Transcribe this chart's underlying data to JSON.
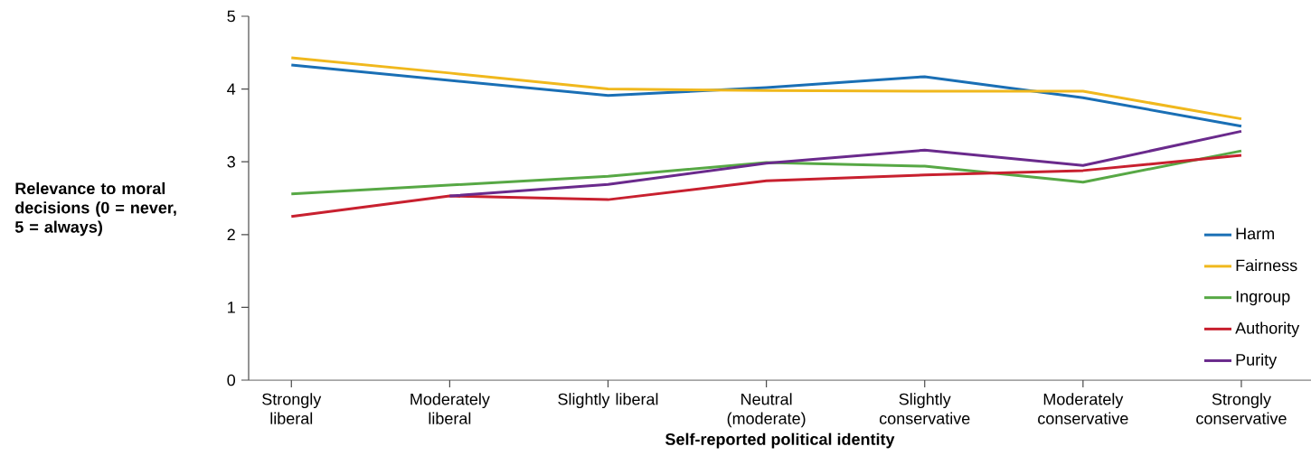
{
  "chart_data": {
    "type": "line",
    "xlabel": "Self-reported political identity",
    "ylabel": "Relevance to moral decisions (0 = never, 5 = always)",
    "categories": [
      "Strongly liberal",
      "Moderately liberal",
      "Slightly liberal",
      "Neutral (moderate)",
      "Slightly conservative",
      "Moderately conservative",
      "Strongly conservative"
    ],
    "series": [
      {
        "name": "Harm",
        "color": "#1a6fb5",
        "values": [
          4.33,
          4.12,
          3.91,
          4.02,
          4.17,
          3.88,
          3.49
        ]
      },
      {
        "name": "Fairness",
        "color": "#f0b81d",
        "values": [
          4.43,
          4.22,
          4.0,
          3.98,
          3.97,
          3.97,
          3.59
        ]
      },
      {
        "name": "Ingroup",
        "color": "#57a845",
        "values": [
          2.56,
          2.68,
          2.8,
          2.99,
          2.94,
          2.72,
          3.15
        ]
      },
      {
        "name": "Authority",
        "color": "#c8202f",
        "values": [
          2.25,
          2.53,
          2.48,
          2.74,
          2.82,
          2.88,
          3.09
        ]
      },
      {
        "name": "Purity",
        "color": "#6a2a8c",
        "values": [
          null,
          2.53,
          2.69,
          2.98,
          3.16,
          2.95,
          3.42
        ]
      }
    ],
    "ylim": [
      0,
      5
    ],
    "yticks": [
      0,
      1,
      2,
      3,
      4,
      5
    ],
    "grid": false,
    "legend": "bottom right",
    "marker": "none",
    "line_style": "solid"
  }
}
